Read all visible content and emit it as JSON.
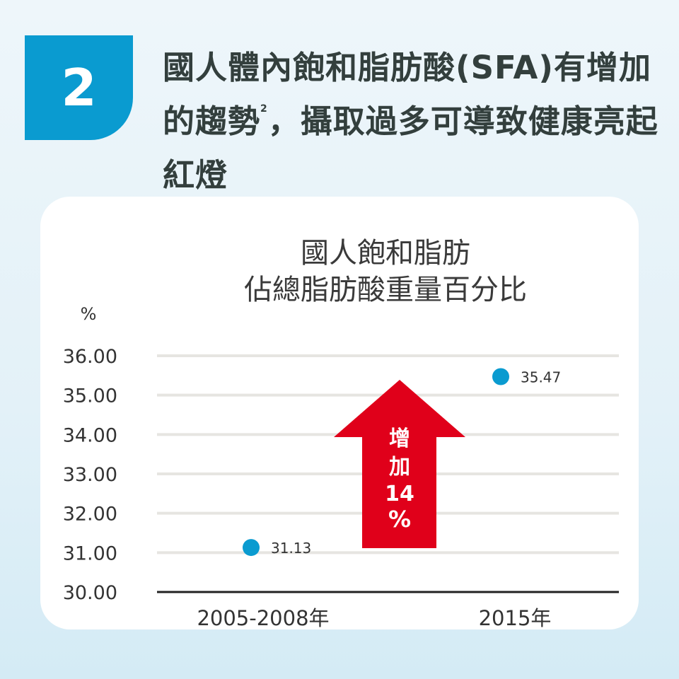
{
  "badge": {
    "number": "2",
    "color": "#0a9bd0"
  },
  "headline": {
    "text_before_sup": "國人體內飽和脂肪酸(SFA)有增加的趨勢",
    "footnote": "2",
    "text_after_sup": "，攝取過多可導致健康亮起紅燈"
  },
  "chart_data": {
    "type": "scatter",
    "title": [
      "國人飽和脂肪",
      "佔總脂肪酸重量百分比"
    ],
    "ylabel": "%",
    "ylim": [
      30,
      36
    ],
    "yticks": [
      "30.00",
      "31.00",
      "32.00",
      "33.00",
      "34.00",
      "35.00",
      "36.00"
    ],
    "categories": [
      "2005-2008年",
      "2015年"
    ],
    "values": [
      31.13,
      35.47
    ],
    "data_labels": [
      "31.13",
      "35.47"
    ],
    "grid": true,
    "point_color": "#0a9bd0",
    "annotation": {
      "lines": [
        "增",
        "加",
        "14",
        "%"
      ],
      "color": "#e0001a"
    }
  }
}
